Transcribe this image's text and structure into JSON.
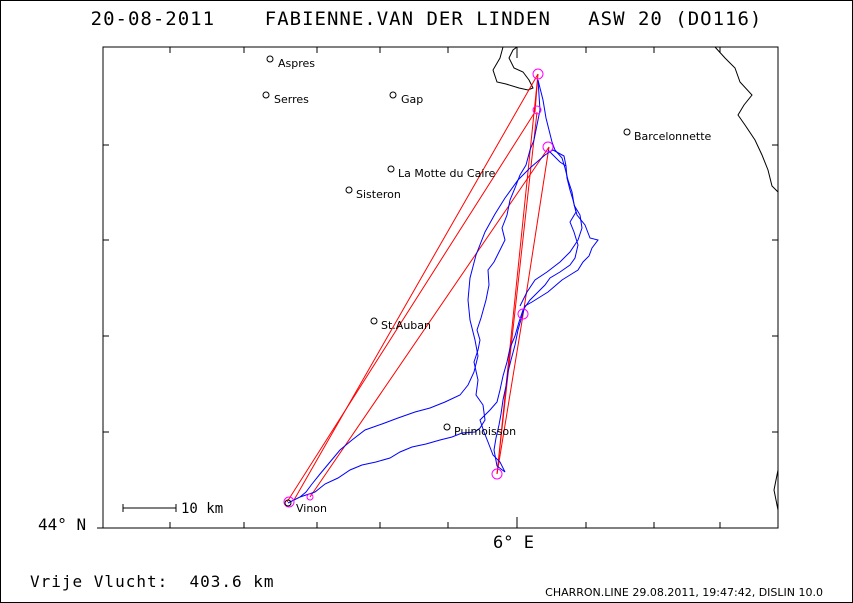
{
  "header": {
    "date": "20-08-2011",
    "pilot": "FABIENNE.VAN DER LINDEN",
    "glider": "ASW 20 (DO116)"
  },
  "axes": {
    "lat_label": "44° N",
    "lon_label": "6° E"
  },
  "scale_bar": {
    "label": "10 km"
  },
  "footer": {
    "distance": "Vrije Vlucht:  403.6 km",
    "credit": "CHARRON.LINE 29.08.2011, 19:47:42, DISLIN 10.0"
  },
  "towns": [
    {
      "name": "Aspres"
    },
    {
      "name": "Serres"
    },
    {
      "name": "Gap"
    },
    {
      "name": "Barcelonnette"
    },
    {
      "name": "La Motte du Caire"
    },
    {
      "name": "Sisteron"
    },
    {
      "name": "St.Auban"
    },
    {
      "name": "Puimoisson"
    },
    {
      "name": "Vinon"
    }
  ],
  "colors": {
    "track": "#0000ff",
    "task_lines": "#ff0000",
    "turnpoints": "#ff00ff",
    "coastline": "#000000"
  }
}
